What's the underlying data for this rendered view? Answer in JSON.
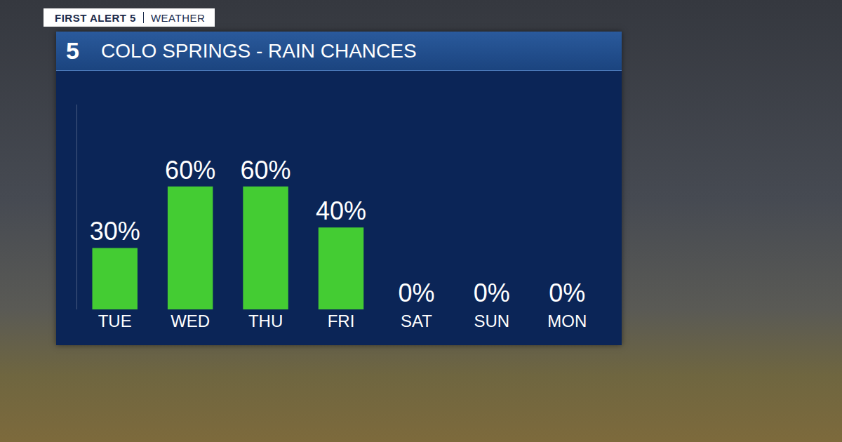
{
  "header": {
    "brand": "FIRST ALERT 5",
    "section": "WEATHER",
    "logo": "5"
  },
  "chart_data": {
    "type": "bar",
    "title": "COLO SPRINGS - RAIN CHANCES",
    "categories": [
      "TUE",
      "WED",
      "THU",
      "FRI",
      "SAT",
      "SUN",
      "MON"
    ],
    "values": [
      30,
      60,
      60,
      40,
      0,
      0,
      0
    ],
    "value_labels": [
      "30%",
      "60%",
      "60%",
      "40%",
      "0%",
      "0%",
      "0%"
    ],
    "color": "#44cc33",
    "ylim": [
      0,
      100
    ],
    "yticks": [],
    "grid": false,
    "data_labels": true,
    "tick_labels": "x"
  }
}
